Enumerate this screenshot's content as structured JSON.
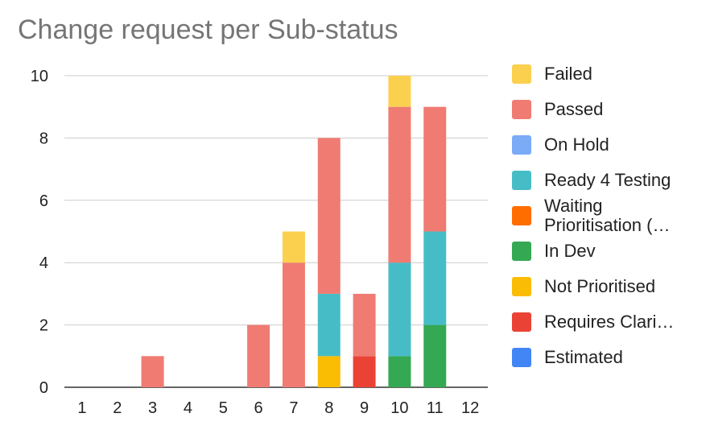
{
  "chart_data": {
    "type": "bar",
    "stacked": true,
    "title": "Change request per Sub-status",
    "xlabel": "",
    "ylabel": "",
    "ylim": [
      0,
      10
    ],
    "yticks": [
      0,
      2,
      4,
      6,
      8,
      10
    ],
    "grid": true,
    "legend_position": "right",
    "categories": [
      "1",
      "2",
      "3",
      "4",
      "5",
      "6",
      "7",
      "8",
      "9",
      "10",
      "11",
      "12"
    ],
    "series": [
      {
        "name": "Estimated",
        "color": "#4285f4",
        "values": [
          0,
          0,
          0,
          0,
          0,
          0,
          0,
          0,
          0,
          0,
          0,
          0
        ]
      },
      {
        "name": "Requires Clari…",
        "color": "#ea4335",
        "values": [
          0,
          0,
          0,
          0,
          0,
          0,
          0,
          0,
          1,
          0,
          0,
          0
        ]
      },
      {
        "name": "Not Prioritised",
        "color": "#fbbc04",
        "values": [
          0,
          0,
          0,
          0,
          0,
          0,
          0,
          1,
          0,
          0,
          0,
          0
        ]
      },
      {
        "name": "In Dev",
        "color": "#34a853",
        "values": [
          0,
          0,
          0,
          0,
          0,
          0,
          0,
          0,
          0,
          1,
          2,
          0
        ]
      },
      {
        "name": "Waiting Prioritisation (…",
        "color": "#ff6d01",
        "values": [
          0,
          0,
          0,
          0,
          0,
          0,
          0,
          0,
          0,
          0,
          0,
          0
        ]
      },
      {
        "name": "Ready 4 Testing",
        "color": "#46bdc6",
        "values": [
          0,
          0,
          0,
          0,
          0,
          0,
          0,
          2,
          0,
          3,
          3,
          0
        ]
      },
      {
        "name": "On Hold",
        "color": "#7baaf7",
        "values": [
          0,
          0,
          0,
          0,
          0,
          0,
          0,
          0,
          0,
          0,
          0,
          0
        ]
      },
      {
        "name": "Passed",
        "color": "#f07b72",
        "values": [
          0,
          0,
          1,
          0,
          0,
          2,
          4,
          5,
          2,
          5,
          4,
          0
        ]
      },
      {
        "name": "Failed",
        "color": "#fcd04f",
        "values": [
          0,
          0,
          0,
          0,
          0,
          0,
          1,
          0,
          0,
          1,
          0,
          0
        ]
      }
    ],
    "legend_order": [
      "Failed",
      "Passed",
      "On Hold",
      "Ready 4 Testing",
      "Waiting Prioritisation (…",
      "In Dev",
      "Not Prioritised",
      "Requires Clari…",
      "Estimated"
    ]
  }
}
